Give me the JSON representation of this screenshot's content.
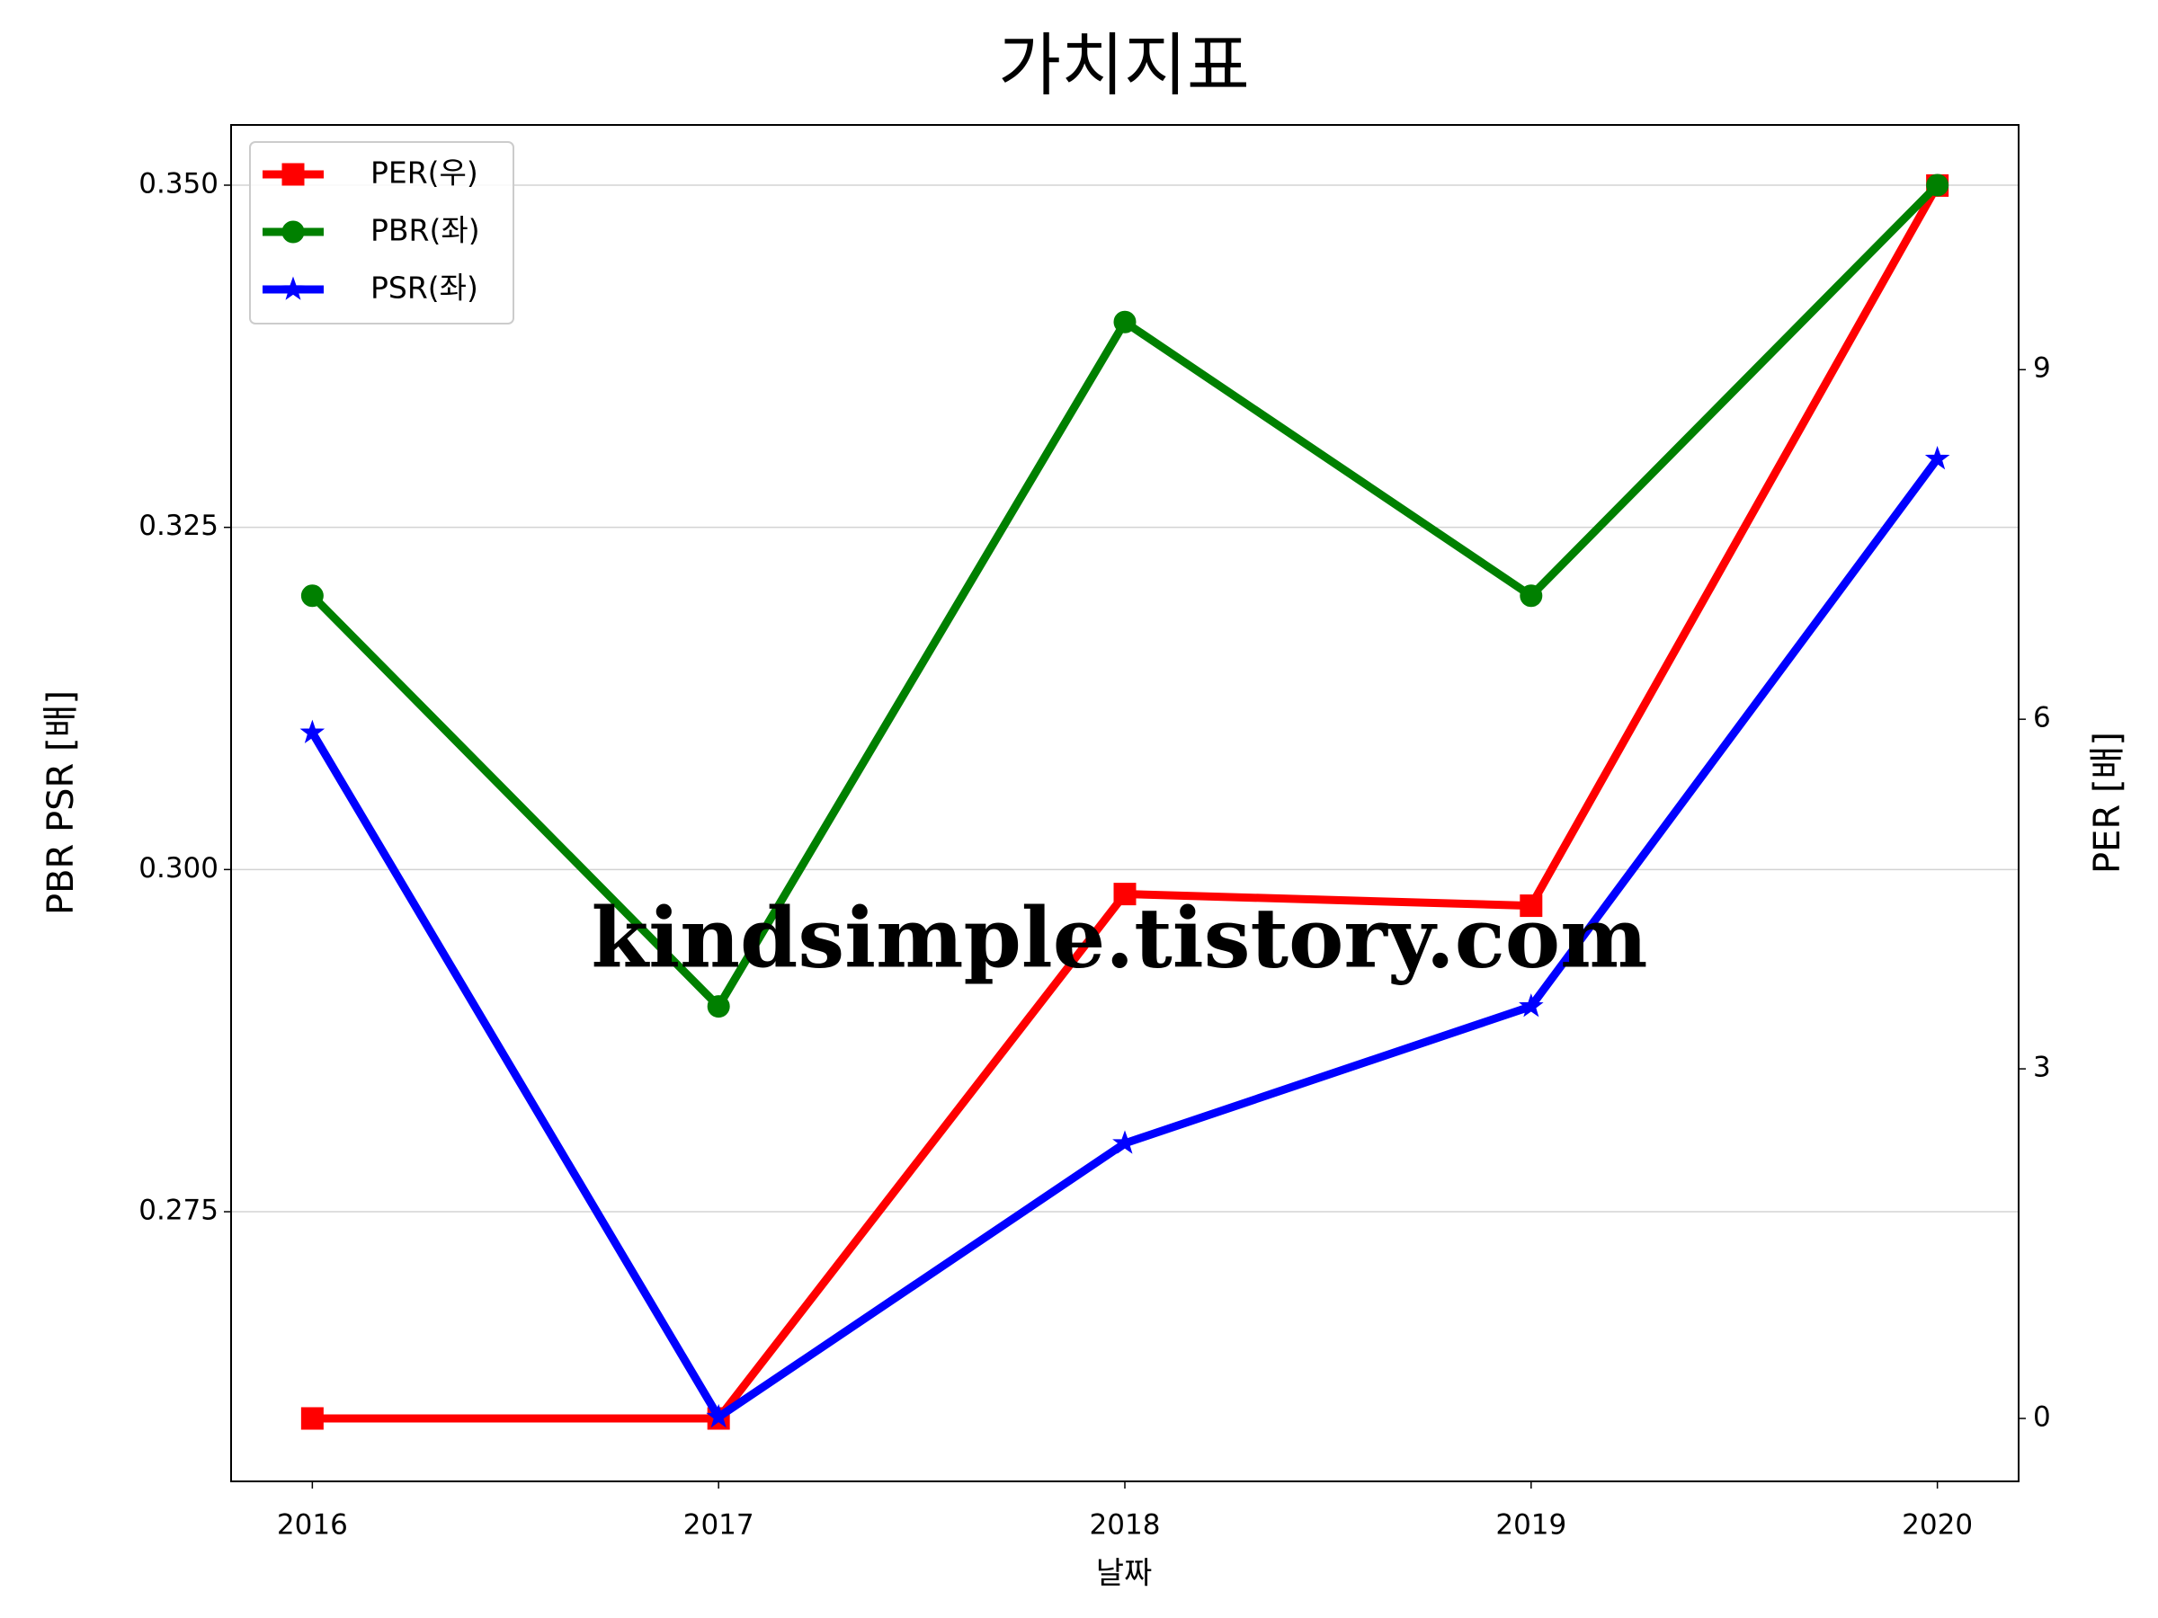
{
  "chart_data": {
    "type": "line",
    "title": "가치지표",
    "xlabel": "날짜",
    "ylabel": "PBR PSR [배]",
    "y2label": "PER [배]",
    "annotation": "kindsimple.tistory.com",
    "x": [
      2016,
      2017,
      2018,
      2019,
      2020
    ],
    "xlim": [
      2015.8,
      2020.2
    ],
    "xticks": [
      2016,
      2017,
      2018,
      2019,
      2020
    ],
    "ylim": [
      0.2553,
      0.3544
    ],
    "yticks": [
      {
        "value": 0.275,
        "label": "0.275"
      },
      {
        "value": 0.3,
        "label": "0.300"
      },
      {
        "value": 0.325,
        "label": "0.325"
      },
      {
        "value": 0.35,
        "label": "0.350"
      }
    ],
    "y2lim": [
      -0.54,
      11.1
    ],
    "y2ticks": [
      0,
      3,
      6,
      9
    ],
    "ylabel_color": "#008000",
    "y2label_color": "#ff0000",
    "grid": true,
    "legend": "upper left",
    "series": [
      {
        "name": "PER(우)",
        "color": "#ff0000",
        "marker": "square",
        "axis": "y2",
        "values": [
          0,
          0,
          4.5,
          4.4,
          10.58
        ]
      },
      {
        "name": "PBR(좌)",
        "color": "#008000",
        "marker": "circle",
        "values": [
          0.32,
          0.29,
          0.34,
          0.32,
          0.35
        ]
      },
      {
        "name": "PSR(좌)",
        "color": "#0000ff",
        "marker": "star",
        "values": [
          0.31,
          0.26,
          0.28,
          0.29,
          0.33
        ]
      }
    ]
  }
}
